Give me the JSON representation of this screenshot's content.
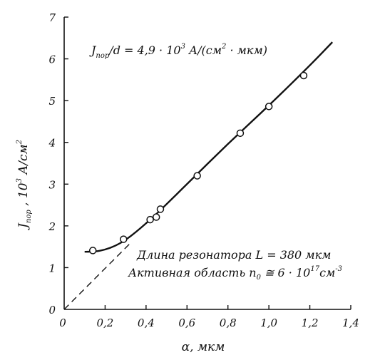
{
  "chart_data": {
    "type": "line",
    "xlabel": "α, мкм",
    "ylabel": "Jпор , 10³ А/см²",
    "xlim": [
      0,
      1.4
    ],
    "ylim": [
      0,
      7
    ],
    "x_ticks": [
      {
        "value": 0,
        "label": "0"
      },
      {
        "value": 0.2,
        "label": "0,2"
      },
      {
        "value": 0.4,
        "label": "0,4"
      },
      {
        "value": 0.6,
        "label": "0,6"
      },
      {
        "value": 0.8,
        "label": "0,8"
      },
      {
        "value": 1.0,
        "label": "1,0"
      },
      {
        "value": 1.2,
        "label": "1,2"
      },
      {
        "value": 1.4,
        "label": "1,4"
      }
    ],
    "y_ticks": [
      {
        "value": 0,
        "label": "0"
      },
      {
        "value": 1,
        "label": "1"
      },
      {
        "value": 2,
        "label": "2"
      },
      {
        "value": 3,
        "label": "3"
      },
      {
        "value": 4,
        "label": "4"
      },
      {
        "value": 5,
        "label": "5"
      },
      {
        "value": 6,
        "label": "6"
      },
      {
        "value": 7,
        "label": "7"
      }
    ],
    "grid": false,
    "series": [
      {
        "kind": "points",
        "marker": "open-circle",
        "x": [
          0.14,
          0.29,
          0.42,
          0.45,
          0.47,
          0.65,
          0.86,
          1.0,
          1.17
        ],
        "y": [
          1.41,
          1.68,
          2.15,
          2.21,
          2.4,
          3.2,
          4.22,
          4.86,
          5.6
        ]
      },
      {
        "kind": "fit-curve",
        "style": "solid",
        "x": [
          0.1,
          0.15,
          0.2,
          0.25,
          0.3,
          0.35,
          0.4,
          0.45,
          0.5,
          0.6,
          0.8,
          1.0,
          1.2,
          1.31
        ],
        "y": [
          1.38,
          1.38,
          1.43,
          1.52,
          1.66,
          1.85,
          2.06,
          2.28,
          2.52,
          3.0,
          3.97,
          4.88,
          5.84,
          6.4
        ]
      },
      {
        "kind": "extrapolation",
        "style": "dashed",
        "x": [
          0,
          0.33
        ],
        "y": [
          0,
          1.62
        ]
      }
    ],
    "annotations": {
      "formula": {
        "base": "J",
        "sub": "пор",
        "mid": "/d = 4,9 · 10",
        "exp1": "3",
        "unit_open": " А/(см",
        "exp2": "2",
        "unit_close": " · мкм)"
      },
      "resonator": "Длина резонатора L = 380 мкм",
      "active": {
        "text": "Активная область n",
        "sub": "0",
        "mid": " ≅ 6 · 10",
        "exp": "17",
        "unit": "см",
        "unit_exp": "-3"
      }
    },
    "ylabel_parts": {
      "base": "J",
      "sub": "пор",
      "mid": " ,  10",
      "exp1": "3",
      "unit": " А/см",
      "exp2": "2"
    }
  },
  "colors": {
    "ink": "#111111",
    "marker_fill": "#ffffff"
  }
}
